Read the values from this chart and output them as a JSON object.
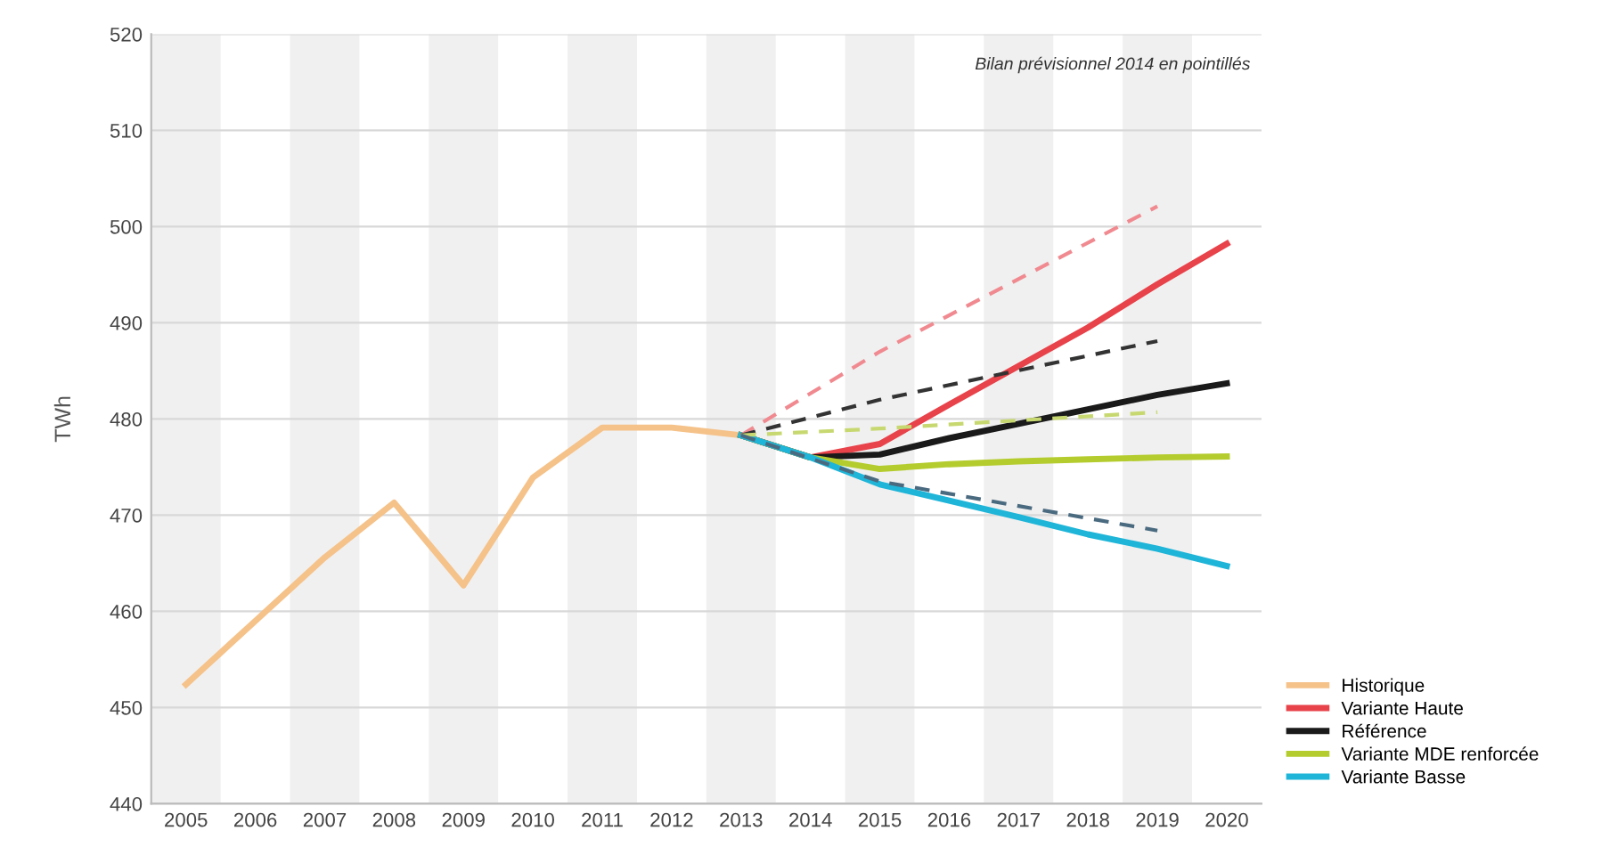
{
  "chart_data": {
    "type": "line",
    "ylabel": "TWh",
    "annotations": [
      "Bilan prévisionnel 2014 en pointillés"
    ],
    "x": [
      2005,
      2006,
      2007,
      2008,
      2009,
      2010,
      2011,
      2012,
      2013
    ],
    "series": [
      {
        "name": "Historique",
        "color": "#f5c28a",
        "values": [
          452.4,
          459,
          465.6,
          471.3,
          462.7,
          473.9,
          479.1,
          479.1,
          478.3
        ]
      },
      {
        "name": "Variante Haute",
        "color": "#e8424a",
        "x": [
          2013,
          2014,
          2015,
          2016,
          2017,
          2018,
          2019,
          2020
        ],
        "values": [
          478.3,
          476,
          477.4,
          481.5,
          485.5,
          489.5,
          494,
          498.2
        ]
      },
      {
        "name": "Référence",
        "color": "#1a1a1a",
        "x": [
          2013,
          2014,
          2015,
          2016,
          2017,
          2018,
          2019,
          2020
        ],
        "values": [
          478.3,
          476,
          476.3,
          478,
          479.5,
          481,
          482.5,
          483.7
        ]
      },
      {
        "name": "Variante MDE renforcée",
        "color": "#b5cc2e",
        "x": [
          2013,
          2014,
          2015,
          2016,
          2017,
          2018,
          2019,
          2020
        ],
        "values": [
          478.3,
          476,
          474.8,
          475.3,
          475.6,
          475.8,
          476,
          476.1
        ]
      },
      {
        "name": "Variante Basse",
        "color": "#1fb5d8",
        "x": [
          2013,
          2014,
          2015,
          2016,
          2017,
          2018,
          2019,
          2020
        ],
        "values": [
          478.3,
          476,
          473.2,
          471.5,
          469.8,
          468,
          466.5,
          464.7
        ]
      },
      {
        "color": "#f08a90",
        "line_style": "dashed",
        "x": [
          2013,
          2015,
          2019
        ],
        "values": [
          478.3,
          487,
          502.1
        ]
      },
      {
        "color": "#333333",
        "line_style": "dashed",
        "x": [
          2013,
          2015,
          2019
        ],
        "values": [
          478.3,
          482,
          488.1
        ]
      },
      {
        "color": "#c8d870",
        "line_style": "dashed",
        "x": [
          2013,
          2015,
          2019
        ],
        "values": [
          478.3,
          479,
          480.7
        ]
      },
      {
        "color": "#4a6a80",
        "line_style": "dashed",
        "x": [
          2013,
          2015,
          2019
        ],
        "values": [
          478.3,
          473.5,
          468.4
        ]
      }
    ],
    "xlim": [
      2004.5,
      2020.5
    ],
    "xticks": [
      2005,
      2006,
      2007,
      2008,
      2009,
      2010,
      2011,
      2012,
      2013,
      2014,
      2015,
      2016,
      2017,
      2018,
      2019,
      2020
    ],
    "ylim": [
      440,
      520
    ],
    "yticks": [
      440,
      450,
      460,
      470,
      480,
      490,
      500,
      510,
      520
    ],
    "bands": [
      {
        "axis": "x",
        "from": 2004.5,
        "to": 2005.5,
        "color": "#f0f0f0"
      },
      {
        "axis": "x",
        "from": 2006.5,
        "to": 2007.5,
        "color": "#f0f0f0"
      },
      {
        "axis": "x",
        "from": 2008.5,
        "to": 2009.5,
        "color": "#f0f0f0"
      },
      {
        "axis": "x",
        "from": 2010.5,
        "to": 2011.5,
        "color": "#f0f0f0"
      },
      {
        "axis": "x",
        "from": 2012.5,
        "to": 2013.5,
        "color": "#f0f0f0"
      },
      {
        "axis": "x",
        "from": 2014.5,
        "to": 2015.5,
        "color": "#f0f0f0"
      },
      {
        "axis": "x",
        "from": 2016.5,
        "to": 2017.5,
        "color": "#f0f0f0"
      },
      {
        "axis": "x",
        "from": 2018.5,
        "to": 2019.5,
        "color": "#f0f0f0"
      }
    ],
    "grid": "y",
    "legend": "bottom right",
    "line_style": "solid",
    "marker": "none"
  }
}
